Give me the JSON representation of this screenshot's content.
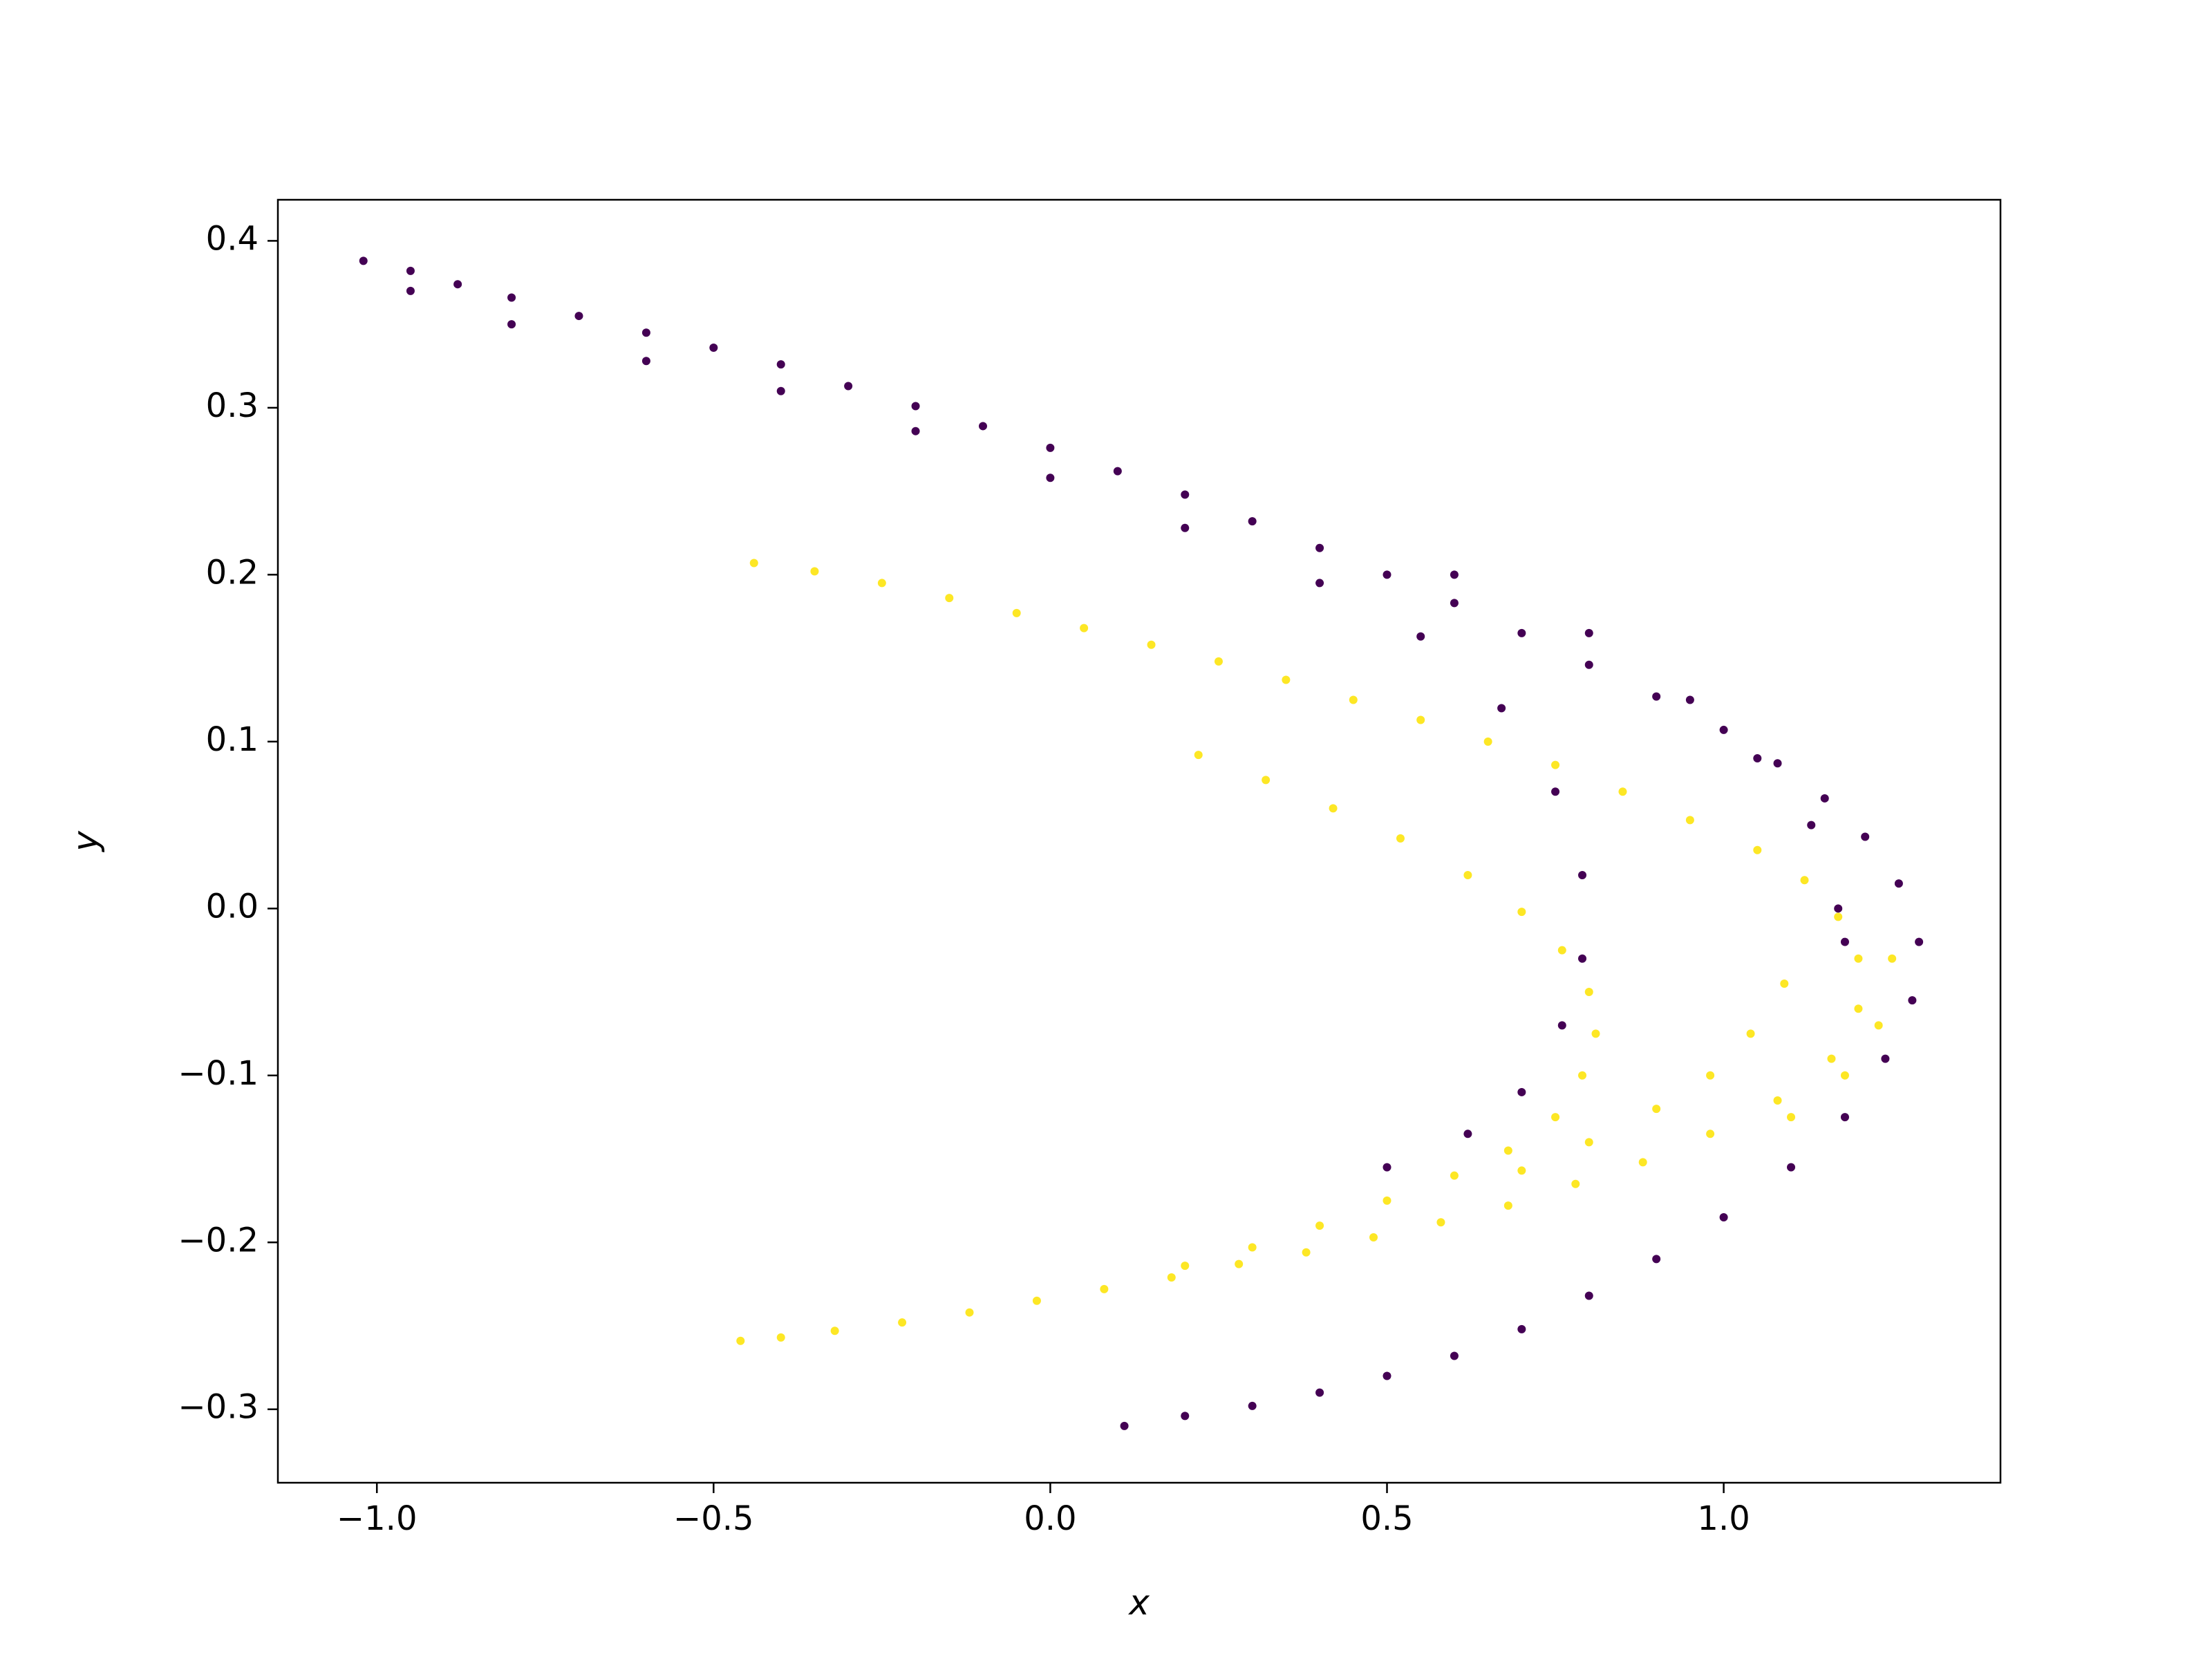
{
  "chart_data": {
    "type": "scatter",
    "xlabel": "x",
    "ylabel": "y",
    "xlim": [
      -1.147,
      1.411
    ],
    "ylim": [
      -0.344,
      0.4246
    ],
    "xticks": [
      {
        "value": -1.0,
        "label": "−1.0"
      },
      {
        "value": -0.5,
        "label": "−0.5"
      },
      {
        "value": 0.0,
        "label": "0.0"
      },
      {
        "value": 0.5,
        "label": "0.5"
      },
      {
        "value": 1.0,
        "label": "1.0"
      }
    ],
    "yticks": [
      {
        "value": -0.3,
        "label": "−0.3"
      },
      {
        "value": -0.2,
        "label": "−0.2"
      },
      {
        "value": -0.1,
        "label": "−0.1"
      },
      {
        "value": 0.0,
        "label": "0.0"
      },
      0.1,
      0.2,
      0.3,
      0.4
    ],
    "grid": false,
    "series": [
      {
        "color": "#440154",
        "x": [
          -1.02,
          -0.95,
          -0.88,
          -0.8,
          -0.7,
          -0.6,
          -0.5,
          -0.4,
          -0.3,
          -0.2,
          -0.1,
          0.0,
          0.1,
          0.2,
          0.3,
          0.4,
          0.5,
          0.6,
          0.7,
          0.8,
          0.9,
          1.0,
          1.08,
          1.15,
          1.21,
          1.26,
          1.29,
          1.28,
          1.24,
          1.18,
          1.1,
          1.0,
          0.9,
          0.8,
          0.7,
          0.6,
          0.5,
          0.4,
          0.3,
          0.2,
          0.11,
          -0.95,
          -0.8,
          -0.6,
          -0.4,
          -0.2,
          0.0,
          0.2,
          0.4,
          0.55,
          0.67,
          0.75,
          0.79,
          0.79,
          0.76,
          0.7,
          0.62,
          0.5,
          0.6,
          0.8,
          0.95,
          1.05,
          1.13,
          1.17,
          1.18
        ],
        "y": [
          0.388,
          0.382,
          0.374,
          0.366,
          0.355,
          0.345,
          0.336,
          0.326,
          0.313,
          0.301,
          0.289,
          0.276,
          0.262,
          0.248,
          0.232,
          0.216,
          0.2,
          0.183,
          0.165,
          0.146,
          0.127,
          0.107,
          0.087,
          0.066,
          0.043,
          0.015,
          -0.02,
          -0.055,
          -0.09,
          -0.125,
          -0.155,
          -0.185,
          -0.21,
          -0.232,
          -0.252,
          -0.268,
          -0.28,
          -0.29,
          -0.298,
          -0.304,
          -0.31,
          0.37,
          0.35,
          0.328,
          0.31,
          0.286,
          0.258,
          0.228,
          0.195,
          0.163,
          0.12,
          0.07,
          0.02,
          -0.03,
          -0.07,
          -0.11,
          -0.135,
          -0.155,
          0.2,
          0.165,
          0.125,
          0.09,
          0.05,
          0.0,
          -0.02
        ]
      },
      {
        "color": "#fde725",
        "x": [
          -0.44,
          -0.35,
          -0.25,
          -0.15,
          -0.05,
          0.05,
          0.15,
          0.25,
          0.35,
          0.45,
          0.55,
          0.65,
          0.75,
          0.85,
          0.95,
          1.05,
          1.12,
          1.17,
          1.2,
          1.2,
          1.16,
          1.08,
          0.98,
          0.88,
          0.78,
          0.68,
          0.58,
          0.48,
          0.38,
          0.28,
          0.18,
          0.08,
          -0.02,
          -0.12,
          -0.22,
          -0.32,
          -0.4,
          -0.46,
          0.22,
          0.32,
          0.42,
          0.52,
          0.62,
          0.7,
          0.76,
          0.8,
          0.81,
          0.79,
          0.75,
          0.68,
          0.6,
          0.5,
          0.4,
          0.3,
          0.2,
          1.09,
          1.04,
          0.98,
          0.9,
          0.8,
          0.7,
          1.25,
          1.23,
          1.18,
          1.1
        ],
        "y": [
          0.207,
          0.202,
          0.195,
          0.186,
          0.177,
          0.168,
          0.158,
          0.148,
          0.137,
          0.125,
          0.113,
          0.1,
          0.086,
          0.07,
          0.053,
          0.035,
          0.017,
          -0.005,
          -0.03,
          -0.06,
          -0.09,
          -0.115,
          -0.135,
          -0.152,
          -0.165,
          -0.178,
          -0.188,
          -0.197,
          -0.206,
          -0.213,
          -0.221,
          -0.228,
          -0.235,
          -0.242,
          -0.248,
          -0.253,
          -0.257,
          -0.259,
          0.092,
          0.077,
          0.06,
          0.042,
          0.02,
          -0.002,
          -0.025,
          -0.05,
          -0.075,
          -0.1,
          -0.125,
          -0.145,
          -0.16,
          -0.175,
          -0.19,
          -0.203,
          -0.214,
          -0.045,
          -0.075,
          -0.1,
          -0.12,
          -0.14,
          -0.157,
          -0.03,
          -0.07,
          -0.1,
          -0.125
        ]
      }
    ]
  }
}
